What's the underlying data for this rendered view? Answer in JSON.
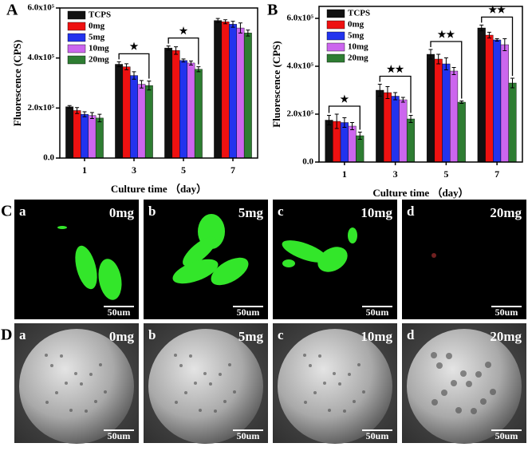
{
  "chart_data": [
    {
      "type": "bar",
      "panel": "A",
      "y_label": "Fluorescence (CPS)",
      "x_label": "Culture time （day）",
      "categories": [
        "1",
        "3",
        "5",
        "7"
      ],
      "series": [
        {
          "name": "TCPS",
          "color": "#111111",
          "values": [
            205000,
            375000,
            440000,
            550000
          ],
          "errors": [
            5000,
            10000,
            8000,
            8000
          ]
        },
        {
          "name": "0mg",
          "color": "#ee1111",
          "values": [
            190000,
            365000,
            430000,
            545000
          ],
          "errors": [
            12000,
            12000,
            15000,
            8000
          ]
        },
        {
          "name": "5mg",
          "color": "#2233ee",
          "values": [
            175000,
            330000,
            390000,
            535000
          ],
          "errors": [
            10000,
            15000,
            6000,
            12000
          ]
        },
        {
          "name": "10mg",
          "color": "#cc66ee",
          "values": [
            170000,
            295000,
            380000,
            520000
          ],
          "errors": [
            12000,
            15000,
            8000,
            20000
          ]
        },
        {
          "name": "20mg",
          "color": "#2e7d32",
          "values": [
            160000,
            290000,
            355000,
            500000
          ],
          "errors": [
            15000,
            18000,
            10000,
            12000
          ]
        }
      ],
      "ylim": [
        0,
        600000
      ],
      "yticks": [
        {
          "value": 0,
          "label": "0.0"
        },
        {
          "value": 200000,
          "label": "2.0x10⁵"
        },
        {
          "value": 400000,
          "label": "4.0x10⁵"
        },
        {
          "value": 600000,
          "label": "6.0x10⁵"
        }
      ],
      "annotations": [
        {
          "text": "★",
          "category": "3"
        },
        {
          "text": "★",
          "category": "5"
        }
      ]
    },
    {
      "type": "bar",
      "panel": "B",
      "y_label": "Fluorescence (CPS)",
      "x_label": "Culture time （day）",
      "categories": [
        "1",
        "3",
        "5",
        "7"
      ],
      "series": [
        {
          "name": "TCPS",
          "color": "#111111",
          "values": [
            175000,
            300000,
            450000,
            560000
          ],
          "errors": [
            20000,
            25000,
            20000,
            12000
          ]
        },
        {
          "name": "0mg",
          "color": "#ee1111",
          "values": [
            170000,
            290000,
            430000,
            530000
          ],
          "errors": [
            30000,
            25000,
            20000,
            12000
          ]
        },
        {
          "name": "5mg",
          "color": "#2233ee",
          "values": [
            165000,
            275000,
            410000,
            510000
          ],
          "errors": [
            20000,
            15000,
            25000,
            5000
          ]
        },
        {
          "name": "10mg",
          "color": "#cc66ee",
          "values": [
            150000,
            260000,
            380000,
            490000
          ],
          "errors": [
            15000,
            10000,
            15000,
            25000
          ]
        },
        {
          "name": "20mg",
          "color": "#2e7d32",
          "values": [
            110000,
            180000,
            250000,
            330000
          ],
          "errors": [
            15000,
            15000,
            5000,
            20000
          ]
        }
      ],
      "ylim": [
        0,
        650000
      ],
      "yticks": [
        {
          "value": 0,
          "label": "0.0"
        },
        {
          "value": 200000,
          "label": "2.0x10⁵"
        },
        {
          "value": 400000,
          "label": "4.0x10⁵"
        },
        {
          "value": 600000,
          "label": "6.0x10⁵"
        }
      ],
      "annotations": [
        {
          "text": "★",
          "category": "1"
        },
        {
          "text": "★★",
          "category": "3"
        },
        {
          "text": "★★",
          "category": "5"
        },
        {
          "text": "★★",
          "category": "7"
        }
      ]
    }
  ],
  "image_panels": [
    {
      "label": "C",
      "panels": [
        {
          "letter": "a",
          "dose": "0mg",
          "scale": "50um"
        },
        {
          "letter": "b",
          "dose": "5mg",
          "scale": "50um"
        },
        {
          "letter": "c",
          "dose": "10mg",
          "scale": "50um"
        },
        {
          "letter": "d",
          "dose": "20mg",
          "scale": "50um"
        }
      ]
    },
    {
      "label": "D",
      "panels": [
        {
          "letter": "a",
          "dose": "0mg",
          "scale": "50um"
        },
        {
          "letter": "b",
          "dose": "5mg",
          "scale": "50um"
        },
        {
          "letter": "c",
          "dose": "10mg",
          "scale": "50um"
        },
        {
          "letter": "d",
          "dose": "20mg",
          "scale": "50um"
        }
      ]
    }
  ]
}
